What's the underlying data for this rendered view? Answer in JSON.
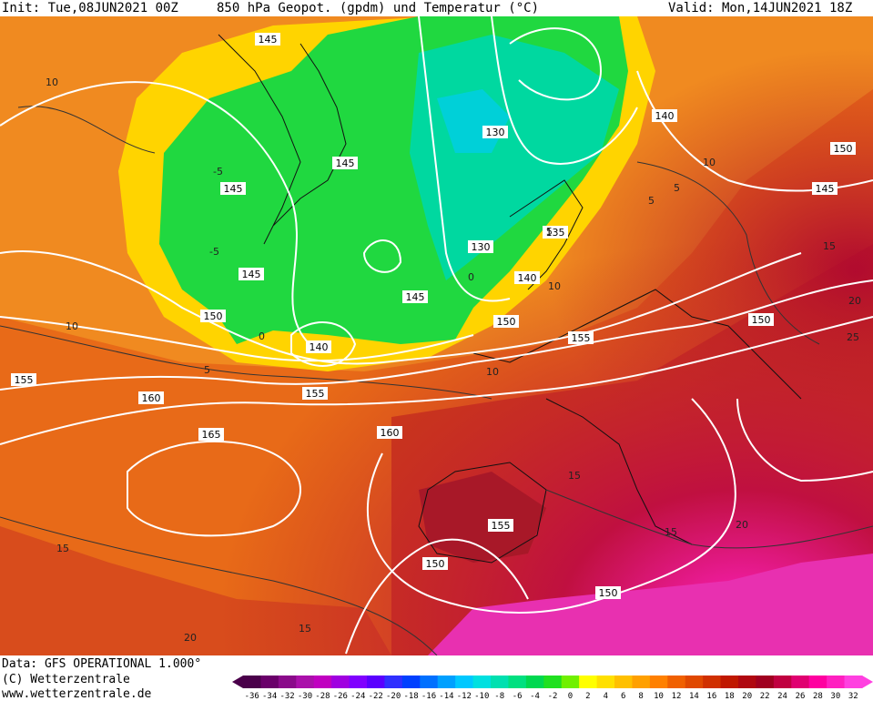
{
  "header": {
    "init": "Init: Tue,08JUN2021 00Z",
    "title": "850 hPa Geopot. (gpdm) und Temperatur (°C)",
    "valid": "Valid: Mon,14JUN2021 18Z"
  },
  "footer": {
    "data_source": "Data: GFS OPERATIONAL 1.000°",
    "copyright": "(C) Wetterzentrale",
    "website": "www.wetterzentrale.de"
  },
  "map_labels": {
    "geopotential": [
      "145",
      "130",
      "145",
      "145",
      "145",
      "130",
      "135",
      "140",
      "145",
      "150",
      "150",
      "140",
      "155",
      "155",
      "160",
      "160",
      "165",
      "155",
      "150",
      "150",
      "140",
      "150",
      "145",
      "150",
      "155"
    ],
    "temperature": [
      "10",
      "10",
      "5",
      "0",
      "0",
      "-5",
      "5",
      "10",
      "10",
      "5",
      "-5",
      "10",
      "15",
      "15",
      "15",
      "20",
      "20",
      "15",
      "20",
      "25",
      "5",
      "15"
    ]
  },
  "scale": {
    "ticks": [
      "-36",
      "-34",
      "-32",
      "-30",
      "-28",
      "-26",
      "-24",
      "-22",
      "-20",
      "-18",
      "-16",
      "-14",
      "-12",
      "-10",
      "-8",
      "-6",
      "-4",
      "-2",
      "0",
      "2",
      "4",
      "6",
      "8",
      "10",
      "12",
      "14",
      "16",
      "18",
      "20",
      "22",
      "24",
      "26",
      "28",
      "30",
      "32"
    ],
    "colors": [
      "#4a004a",
      "#6a006a",
      "#8a0a8a",
      "#aa10aa",
      "#c000c0",
      "#a000e0",
      "#8000ff",
      "#5a00ff",
      "#3030ff",
      "#0040ff",
      "#0070ff",
      "#00a0ff",
      "#00c8ff",
      "#00e0e0",
      "#00e0b0",
      "#00e080",
      "#00d850",
      "#20e020",
      "#70f000",
      "#ffff00",
      "#ffe000",
      "#ffc000",
      "#ffa000",
      "#ff8000",
      "#f06000",
      "#e04800",
      "#d03000",
      "#c01800",
      "#b00810",
      "#a00020",
      "#c00040",
      "#e00070",
      "#ff00a0",
      "#ff20c0",
      "#ff40e0"
    ]
  },
  "colors": {
    "ice_green": "#20d840",
    "cyan_core": "#00e0b0",
    "yellow": "#ffe000",
    "orange": "#f08020",
    "red": "#d04020",
    "magenta": "#ff20c0"
  }
}
